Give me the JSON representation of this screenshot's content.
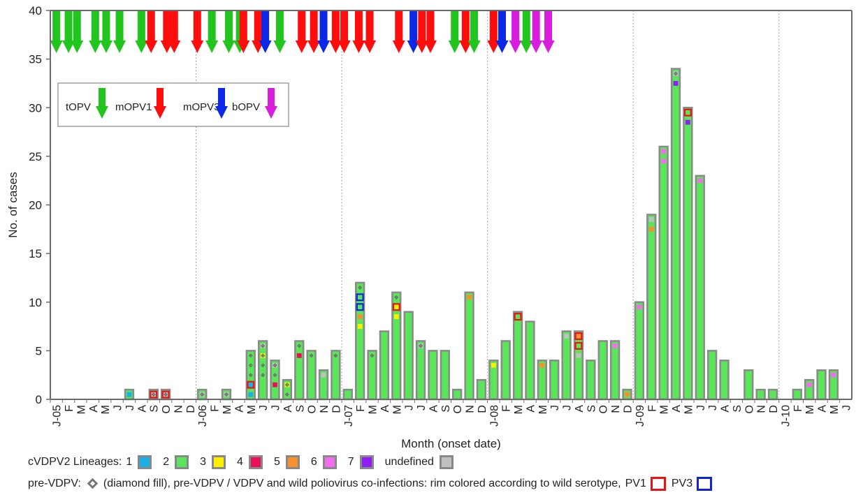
{
  "chart_data": {
    "type": "bar",
    "ylabel": "No. of cases",
    "xlabel": "Month (onset date)",
    "ylim": [
      0,
      40
    ],
    "yticks": [
      0,
      5,
      10,
      15,
      20,
      25,
      30,
      35,
      40
    ],
    "categories": [
      "J-05",
      "F",
      "M",
      "A",
      "M",
      "J",
      "J",
      "A",
      "S",
      "O",
      "N",
      "D",
      "J-06",
      "F",
      "M",
      "A",
      "M",
      "J",
      "J",
      "A",
      "S",
      "O",
      "N",
      "D",
      "J-07",
      "F",
      "M",
      "A",
      "M",
      "J",
      "J",
      "A",
      "S",
      "O",
      "N",
      "D",
      "J-08",
      "F",
      "M",
      "A",
      "M",
      "J",
      "J",
      "A",
      "S",
      "O",
      "N",
      "D",
      "J-09",
      "F",
      "M",
      "A",
      "M",
      "J",
      "J",
      "A",
      "S",
      "O",
      "N",
      "D",
      "J-10",
      "F",
      "M",
      "A",
      "M",
      "J"
    ],
    "totals": [
      0,
      0,
      0,
      0,
      0,
      0,
      1,
      0,
      1,
      1,
      0,
      0,
      1,
      0,
      1,
      0,
      5,
      6,
      4,
      2,
      6,
      5,
      3,
      5,
      1,
      12,
      5,
      7,
      11,
      9,
      6,
      5,
      5,
      1,
      11,
      2,
      4,
      6,
      9,
      8,
      4,
      4,
      7,
      7,
      4,
      6,
      6,
      1,
      10,
      19,
      26,
      34,
      30,
      23,
      5,
      4,
      0,
      3,
      1,
      1,
      0,
      1,
      2,
      3,
      3,
      0
    ],
    "lineage_colors": {
      "1": "#1ab0e6",
      "2": "#5ae55a",
      "3": "#fff000",
      "4": "#e8105a",
      "5": "#f7902e",
      "6": "#f46cf0",
      "7": "#8f1ef2",
      "u": "#c0c0c0"
    },
    "boxes": [
      {
        "i": 6,
        "s": 0,
        "c": "1"
      },
      {
        "i": 8,
        "s": 0,
        "c": "u",
        "pre": true,
        "rim": "PV1"
      },
      {
        "i": 9,
        "s": 0,
        "c": "u",
        "pre": true,
        "rim": "PV1"
      },
      {
        "i": 12,
        "s": 0,
        "c": "u",
        "pre": true
      },
      {
        "i": 14,
        "s": 0,
        "c": "u",
        "pre": true
      },
      {
        "i": 16,
        "s": 0,
        "c": "1"
      },
      {
        "i": 16,
        "s": 1,
        "c": "1",
        "rim": "PV1"
      },
      {
        "i": 16,
        "s": 2,
        "c": "2",
        "pre": true
      },
      {
        "i": 16,
        "s": 3,
        "c": "2",
        "pre": true
      },
      {
        "i": 16,
        "s": 4,
        "c": "2",
        "pre": true
      },
      {
        "i": 17,
        "s": 2,
        "c": "2",
        "pre": true
      },
      {
        "i": 17,
        "s": 3,
        "c": "2",
        "pre": true
      },
      {
        "i": 17,
        "s": 4,
        "c": "3",
        "pre": true
      },
      {
        "i": 17,
        "s": 5,
        "c": "u",
        "pre": true
      },
      {
        "i": 18,
        "s": 1,
        "c": "4"
      },
      {
        "i": 18,
        "s": 2,
        "c": "2",
        "pre": true
      },
      {
        "i": 18,
        "s": 3,
        "c": "u",
        "pre": true
      },
      {
        "i": 19,
        "s": 0,
        "c": "2",
        "pre": true
      },
      {
        "i": 19,
        "s": 1,
        "c": "3",
        "pre": true
      },
      {
        "i": 20,
        "s": 4,
        "c": "4"
      },
      {
        "i": 20,
        "s": 5,
        "c": "2",
        "pre": true
      },
      {
        "i": 21,
        "s": 4,
        "c": "2",
        "pre": true
      },
      {
        "i": 22,
        "s": 2,
        "c": "u"
      },
      {
        "i": 23,
        "s": 4,
        "c": "2",
        "pre": true
      },
      {
        "i": 25,
        "s": 7,
        "c": "3"
      },
      {
        "i": 25,
        "s": 8,
        "c": "5"
      },
      {
        "i": 25,
        "s": 9,
        "c": "2",
        "rim": "PV3"
      },
      {
        "i": 25,
        "s": 10,
        "c": "2",
        "rim": "PV3"
      },
      {
        "i": 25,
        "s": 11,
        "c": "2",
        "pre": true
      },
      {
        "i": 26,
        "s": 4,
        "c": "2",
        "pre": true
      },
      {
        "i": 28,
        "s": 8,
        "c": "3"
      },
      {
        "i": 28,
        "s": 9,
        "c": "3",
        "rim": "PV1"
      },
      {
        "i": 28,
        "s": 10,
        "c": "2",
        "pre": true
      },
      {
        "i": 30,
        "s": 5,
        "c": "u",
        "pre": true
      },
      {
        "i": 34,
        "s": 10,
        "c": "5"
      },
      {
        "i": 36,
        "s": 3,
        "c": "3"
      },
      {
        "i": 38,
        "s": 8,
        "c": "2",
        "rim": "PV1"
      },
      {
        "i": 40,
        "s": 3,
        "c": "5"
      },
      {
        "i": 42,
        "s": 6,
        "c": "u"
      },
      {
        "i": 43,
        "s": 4,
        "c": "u"
      },
      {
        "i": 43,
        "s": 5,
        "c": "2",
        "rim": "PV1"
      },
      {
        "i": 43,
        "s": 6,
        "c": "5",
        "rim": "PV1"
      },
      {
        "i": 46,
        "s": 5,
        "c": "6"
      },
      {
        "i": 47,
        "s": 0,
        "c": "5"
      },
      {
        "i": 48,
        "s": 9,
        "c": "6"
      },
      {
        "i": 49,
        "s": 17,
        "c": "5"
      },
      {
        "i": 49,
        "s": 18,
        "c": "u"
      },
      {
        "i": 50,
        "s": 24,
        "c": "6"
      },
      {
        "i": 50,
        "s": 25,
        "c": "6"
      },
      {
        "i": 51,
        "s": 32,
        "c": "7"
      },
      {
        "i": 51,
        "s": 33,
        "c": "u",
        "pre": true
      },
      {
        "i": 52,
        "s": 28,
        "c": "7"
      },
      {
        "i": 52,
        "s": 29,
        "c": "2",
        "rim": "PV1"
      },
      {
        "i": 53,
        "s": 22,
        "c": "6"
      },
      {
        "i": 62,
        "s": 1,
        "c": "6"
      },
      {
        "i": 64,
        "s": 2,
        "c": "6"
      }
    ],
    "campaigns": [
      {
        "m": 0.5,
        "v": "tOPV"
      },
      {
        "m": 1.5,
        "v": "tOPV"
      },
      {
        "m": 2.2,
        "v": "tOPV"
      },
      {
        "m": 3.7,
        "v": "tOPV"
      },
      {
        "m": 4.6,
        "v": "tOPV"
      },
      {
        "m": 5.7,
        "v": "tOPV"
      },
      {
        "m": 7.5,
        "v": "tOPV"
      },
      {
        "m": 8.3,
        "v": "mOPV1"
      },
      {
        "m": 9.6,
        "v": "mOPV1"
      },
      {
        "m": 10.2,
        "v": "mOPV1"
      },
      {
        "m": 12.1,
        "v": "mOPV1"
      },
      {
        "m": 13.3,
        "v": "tOPV"
      },
      {
        "m": 14.7,
        "v": "tOPV"
      },
      {
        "m": 15.6,
        "v": "tOPV"
      },
      {
        "m": 15.9,
        "v": "mOPV1"
      },
      {
        "m": 17.1,
        "v": "mOPV1"
      },
      {
        "m": 17.7,
        "v": "mOPV3"
      },
      {
        "m": 18.9,
        "v": "tOPV"
      },
      {
        "m": 20.7,
        "v": "mOPV1"
      },
      {
        "m": 21.7,
        "v": "mOPV1"
      },
      {
        "m": 22.5,
        "v": "mOPV3"
      },
      {
        "m": 23.5,
        "v": "mOPV1"
      },
      {
        "m": 24.2,
        "v": "mOPV1"
      },
      {
        "m": 25.4,
        "v": "mOPV1"
      },
      {
        "m": 26.3,
        "v": "mOPV1"
      },
      {
        "m": 28.7,
        "v": "mOPV1"
      },
      {
        "m": 29.9,
        "v": "mOPV3"
      },
      {
        "m": 30.6,
        "v": "mOPV1"
      },
      {
        "m": 31.3,
        "v": "mOPV1"
      },
      {
        "m": 33.3,
        "v": "tOPV"
      },
      {
        "m": 34.2,
        "v": "mOPV1"
      },
      {
        "m": 34.9,
        "v": "tOPV"
      },
      {
        "m": 36.5,
        "v": "mOPV1"
      },
      {
        "m": 37.2,
        "v": "mOPV3"
      },
      {
        "m": 38.3,
        "v": "bOPV"
      },
      {
        "m": 39.2,
        "v": "tOPV"
      },
      {
        "m": 40.0,
        "v": "bOPV"
      },
      {
        "m": 41.0,
        "v": "bOPV"
      }
    ],
    "vaccine_colors": {
      "tOPV": "#22c41e",
      "mOPV1": "#ff0c0c",
      "mOPV3": "#0a28e6",
      "bOPV": "#d81edc"
    },
    "vaccine_legend": [
      "tOPV",
      "mOPV1",
      "mOPV3",
      "bOPV"
    ],
    "rim_colors": {
      "PV1": "#ee1111",
      "PV3": "#1122dd"
    },
    "grid": "vertical dotted lines at each January",
    "legend_position": "upper-left"
  },
  "footer": {
    "lineages_label": "cVDPV2 Lineages:",
    "lineage_items": [
      {
        "label": "1",
        "color": "#1ab0e6"
      },
      {
        "label": "2",
        "color": "#5ae55a"
      },
      {
        "label": "3",
        "color": "#fff000"
      },
      {
        "label": "4",
        "color": "#e8105a"
      },
      {
        "label": "5",
        "color": "#f7902e"
      },
      {
        "label": "6",
        "color": "#f46cf0"
      },
      {
        "label": "7",
        "color": "#8f1ef2"
      },
      {
        "label": "undefined",
        "color": "#c0c0c0"
      }
    ],
    "prevdpv_label": "pre-VDPV:",
    "prevdpv_text": "(diamond fill), pre-VDPV / VDPV and wild poliovirus co-infections: rim colored according to wild serotype,",
    "pv1_label": "PV1",
    "pv3_label": "PV3",
    "pv1_color": "#ee1111",
    "pv3_color": "#1122dd"
  }
}
